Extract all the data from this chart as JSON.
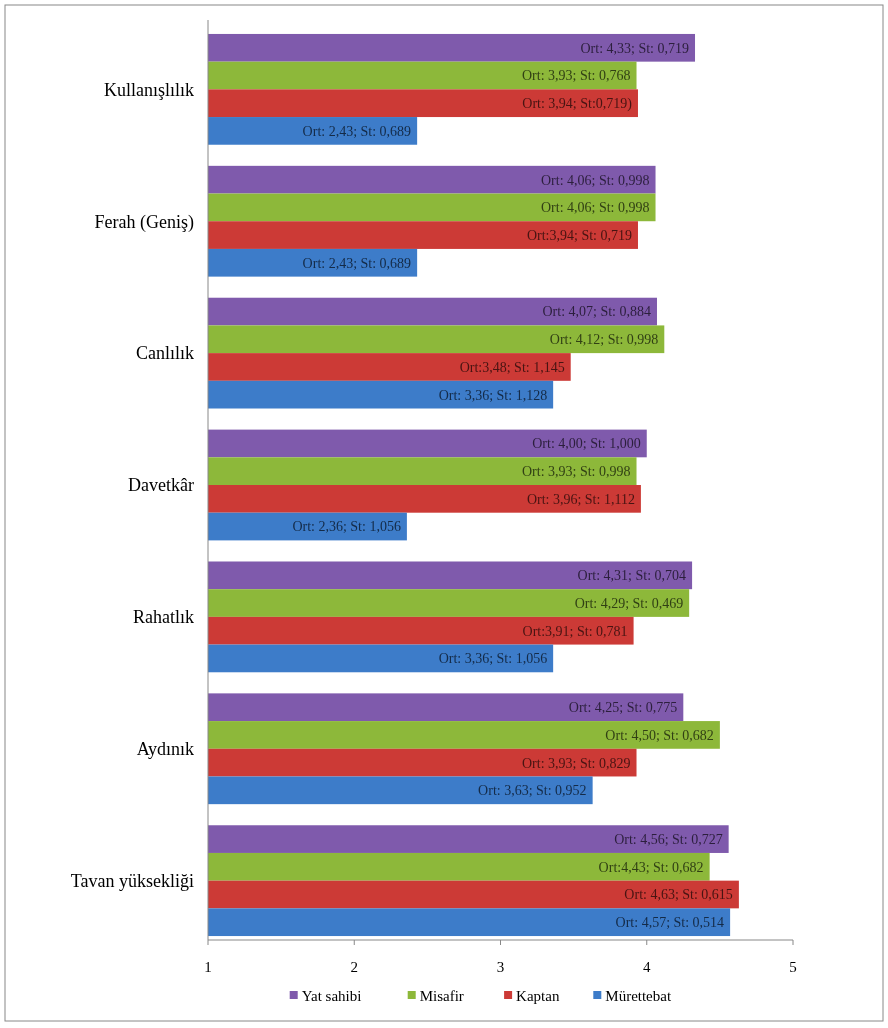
{
  "chart_data": {
    "type": "bar",
    "orientation": "horizontal",
    "categories": [
      "Kullanışlılık",
      "Ferah (Geniş)",
      "Canlılık",
      "Davetkâr",
      "Rahatlık",
      "Aydınık",
      "Tavan yüksekliği"
    ],
    "series": [
      {
        "name": "Yat sahibi",
        "color": "#7f5aac",
        "values": [
          4.33,
          4.06,
          4.07,
          4.0,
          4.31,
          4.25,
          4.56
        ],
        "value_labels": [
          "Ort: 4,33; St: 0,719",
          "Ort: 4,06; St: 0,998",
          "Ort: 4,07; St: 0,884",
          "Ort: 4,00; St: 1,000",
          "Ort: 4,31; St: 0,704",
          "Ort: 4,25; St: 0,775",
          "Ort: 4,56; St: 0,727"
        ]
      },
      {
        "name": "Misafir",
        "color": "#8db83a",
        "values": [
          3.93,
          4.06,
          4.12,
          3.93,
          4.29,
          4.5,
          4.43
        ],
        "value_labels": [
          "Ort: 3,93; St: 0,768",
          "Ort: 4,06; St: 0,998",
          "Ort: 4,12; St: 0,998",
          "Ort: 3,93; St: 0,998",
          "Ort: 4,29; St: 0,469",
          "Ort: 4,50; St: 0,682",
          "Ort:4,43; St: 0,682"
        ]
      },
      {
        "name": "Kaptan",
        "color": "#cc3a36",
        "values": [
          3.94,
          3.94,
          3.48,
          3.96,
          3.91,
          3.93,
          4.63
        ],
        "value_labels": [
          "Ort: 3,94; St:0,719)",
          "Ort:3,94; St: 0,719",
          "Ort:3,48; St: 1,145",
          "Ort: 3,96; St: 1,112",
          "Ort:3,91; St: 0,781",
          "Ort: 3,93; St: 0,829",
          "Ort: 4,63; St: 0,615"
        ]
      },
      {
        "name": "Mürettebat",
        "color": "#3d7cc9",
        "values": [
          2.43,
          2.43,
          3.36,
          2.36,
          3.36,
          3.63,
          4.57
        ],
        "value_labels": [
          "Ort: 2,43; St: 0,689",
          "Ort: 2,43; St: 0,689",
          "Ort: 3,36; St: 1,128",
          "Ort: 2,36; St: 1,056",
          "Ort: 3,36; St: 1,056",
          "Ort: 3,63; St: 0,952",
          "Ort: 4,57; St: 0,514"
        ]
      }
    ],
    "xlim": [
      1,
      5
    ],
    "xticks": [
      1,
      2,
      3,
      4,
      5
    ],
    "legend": "bottom",
    "grid": false
  }
}
